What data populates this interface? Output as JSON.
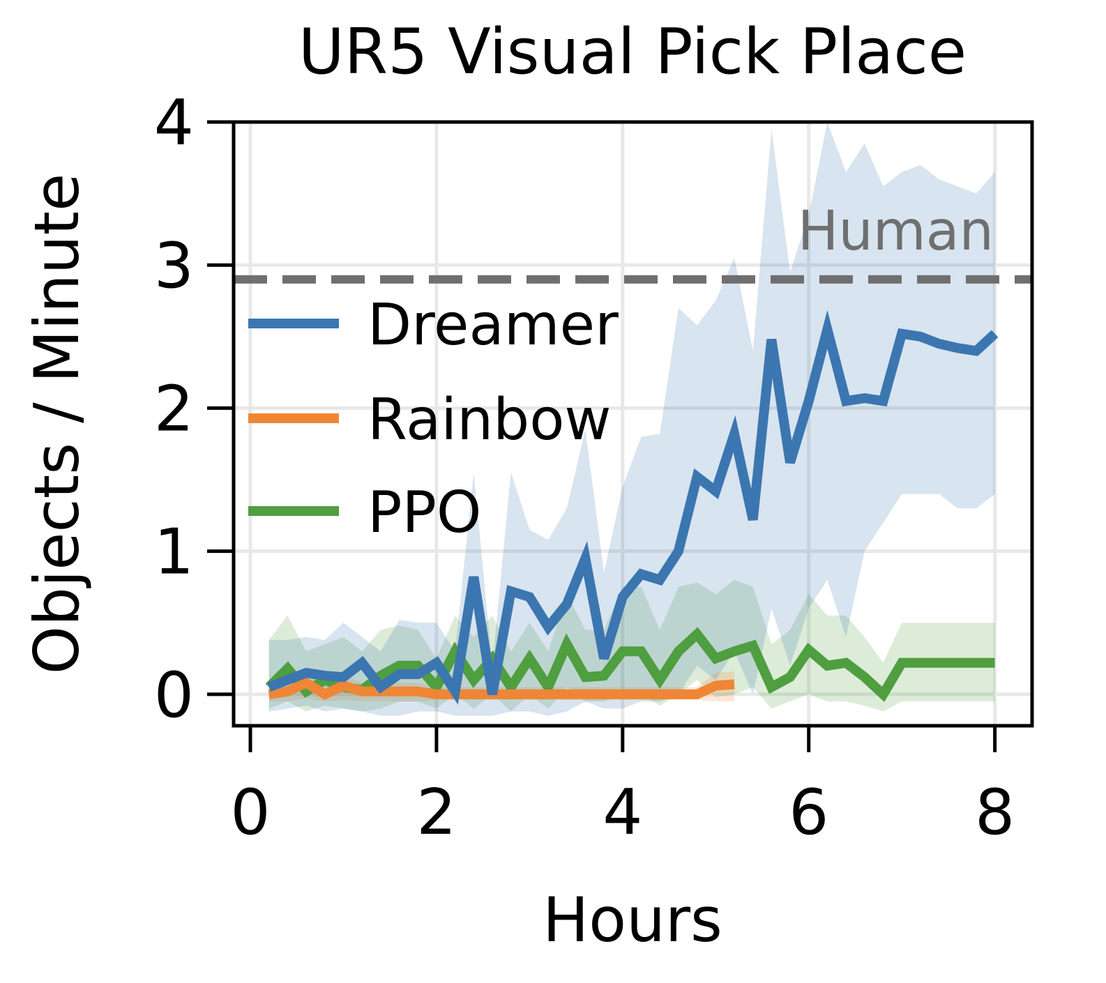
{
  "chart_data": {
    "type": "line",
    "title": "UR5 Visual Pick Place",
    "xlabel": "Hours",
    "ylabel": "Objects / Minute",
    "xlim": [
      -0.18,
      8.4
    ],
    "ylim": [
      -0.22,
      4.0
    ],
    "xticks": [
      0,
      2,
      4,
      6,
      8
    ],
    "yticks": [
      0,
      1,
      2,
      3,
      4
    ],
    "grid": true,
    "legend_position": "center-left",
    "reference_line": {
      "label": "Human",
      "y": 2.9,
      "color": "#6f6f6f",
      "style": "dashed"
    },
    "series": [
      {
        "name": "Dreamer",
        "color": "#3b76b0",
        "x": [
          0.2,
          0.4,
          0.6,
          0.8,
          1.0,
          1.2,
          1.4,
          1.6,
          1.8,
          2.0,
          2.2,
          2.4,
          2.6,
          2.8,
          3.0,
          3.2,
          3.4,
          3.6,
          3.8,
          4.0,
          4.2,
          4.4,
          4.6,
          4.8,
          5.0,
          5.2,
          5.4,
          5.6,
          5.8,
          6.0,
          6.2,
          6.4,
          6.6,
          6.8,
          7.0,
          7.2,
          7.4,
          7.6,
          7.8,
          8.0
        ],
        "y": [
          0.05,
          0.1,
          0.15,
          0.13,
          0.12,
          0.22,
          0.05,
          0.14,
          0.14,
          0.22,
          0.02,
          0.82,
          0.0,
          0.72,
          0.68,
          0.47,
          0.63,
          0.95,
          0.25,
          0.68,
          0.84,
          0.8,
          1.0,
          1.52,
          1.42,
          1.82,
          1.22,
          2.48,
          1.62,
          2.05,
          2.55,
          2.05,
          2.07,
          2.05,
          2.52,
          2.5,
          2.45,
          2.42,
          2.4,
          2.52
        ],
        "lower": [
          -0.12,
          -0.1,
          -0.08,
          -0.12,
          -0.1,
          -0.12,
          -0.15,
          -0.15,
          -0.12,
          -0.12,
          -0.15,
          -0.15,
          -0.15,
          -0.12,
          -0.12,
          -0.15,
          -0.12,
          -0.05,
          -0.1,
          -0.1,
          -0.05,
          -0.05,
          0.0,
          0.2,
          0.1,
          0.3,
          0.0,
          0.6,
          0.2,
          0.6,
          0.8,
          0.4,
          1.0,
          1.2,
          1.4,
          1.4,
          1.4,
          1.3,
          1.3,
          1.4
        ],
        "upper": [
          0.38,
          0.38,
          0.4,
          0.38,
          0.5,
          0.4,
          0.3,
          0.52,
          0.5,
          0.5,
          0.3,
          1.55,
          0.2,
          1.55,
          1.15,
          1.08,
          1.3,
          1.85,
          0.85,
          1.45,
          1.8,
          1.82,
          2.7,
          2.58,
          2.75,
          3.05,
          2.4,
          3.95,
          2.95,
          3.35,
          4.0,
          3.65,
          3.85,
          3.55,
          3.65,
          3.7,
          3.6,
          3.55,
          3.5,
          3.65
        ]
      },
      {
        "name": "Rainbow",
        "color": "#ef8635",
        "x": [
          0.2,
          0.4,
          0.6,
          0.8,
          1.0,
          1.2,
          1.4,
          1.6,
          1.8,
          2.0,
          2.2,
          2.4,
          2.6,
          2.8,
          3.0,
          3.2,
          3.4,
          3.6,
          3.8,
          4.0,
          4.2,
          4.4,
          4.6,
          4.8,
          5.0,
          5.2
        ],
        "y": [
          0.0,
          0.02,
          0.08,
          0.0,
          0.06,
          0.02,
          0.02,
          0.02,
          0.02,
          0.0,
          0.0,
          0.0,
          0.0,
          0.0,
          0.0,
          0.0,
          0.0,
          0.0,
          0.0,
          0.0,
          0.0,
          0.0,
          0.0,
          0.0,
          0.06,
          0.07
        ],
        "lower": [
          -0.05,
          -0.05,
          -0.03,
          -0.05,
          -0.04,
          -0.05,
          -0.05,
          -0.05,
          -0.05,
          -0.04,
          -0.04,
          -0.04,
          -0.04,
          -0.04,
          -0.04,
          -0.04,
          -0.04,
          -0.04,
          -0.04,
          -0.04,
          -0.04,
          -0.04,
          -0.04,
          -0.04,
          -0.05,
          -0.05
        ],
        "upper": [
          0.06,
          0.08,
          0.18,
          0.06,
          0.14,
          0.08,
          0.08,
          0.08,
          0.08,
          0.05,
          0.05,
          0.05,
          0.05,
          0.05,
          0.05,
          0.05,
          0.05,
          0.05,
          0.05,
          0.05,
          0.05,
          0.05,
          0.05,
          0.05,
          0.15,
          0.16
        ]
      },
      {
        "name": "PPO",
        "color": "#4f9e3f",
        "x": [
          0.2,
          0.4,
          0.6,
          0.8,
          1.0,
          1.2,
          1.4,
          1.6,
          1.8,
          2.0,
          2.2,
          2.4,
          2.6,
          2.8,
          3.0,
          3.2,
          3.4,
          3.6,
          3.8,
          4.0,
          4.2,
          4.4,
          4.6,
          4.8,
          5.0,
          5.2,
          5.4,
          5.6,
          5.8,
          6.0,
          6.2,
          6.4,
          6.6,
          6.8,
          7.0,
          7.2,
          7.4,
          7.6,
          7.8,
          8.0
        ],
        "y": [
          0.05,
          0.18,
          0.02,
          0.1,
          0.05,
          0.03,
          0.13,
          0.2,
          0.2,
          0.05,
          0.3,
          0.1,
          0.25,
          0.05,
          0.25,
          0.05,
          0.35,
          0.12,
          0.13,
          0.3,
          0.3,
          0.1,
          0.3,
          0.42,
          0.25,
          0.3,
          0.34,
          0.05,
          0.12,
          0.31,
          0.2,
          0.22,
          0.12,
          0.0,
          0.22,
          0.22,
          0.22,
          0.22,
          0.22,
          0.22
        ],
        "lower": [
          -0.1,
          -0.05,
          -0.12,
          -0.08,
          -0.1,
          -0.12,
          -0.1,
          -0.05,
          -0.05,
          -0.1,
          0.0,
          -0.1,
          0.0,
          -0.12,
          0.0,
          -0.1,
          0.05,
          -0.05,
          -0.05,
          0.0,
          0.0,
          -0.08,
          0.0,
          0.1,
          -0.02,
          0.0,
          0.05,
          -0.1,
          -0.05,
          0.0,
          -0.05,
          -0.05,
          -0.08,
          -0.12,
          -0.05,
          -0.05,
          -0.05,
          -0.05,
          -0.05,
          -0.05
        ],
        "upper": [
          0.38,
          0.55,
          0.3,
          0.35,
          0.4,
          0.3,
          0.45,
          0.48,
          0.45,
          0.25,
          0.55,
          0.4,
          0.55,
          0.3,
          0.5,
          0.3,
          0.7,
          0.45,
          0.45,
          0.75,
          0.75,
          0.45,
          0.75,
          0.78,
          0.7,
          0.8,
          0.75,
          0.35,
          0.45,
          0.7,
          0.55,
          0.55,
          0.4,
          0.22,
          0.5,
          0.5,
          0.5,
          0.5,
          0.5,
          0.5
        ]
      }
    ]
  }
}
